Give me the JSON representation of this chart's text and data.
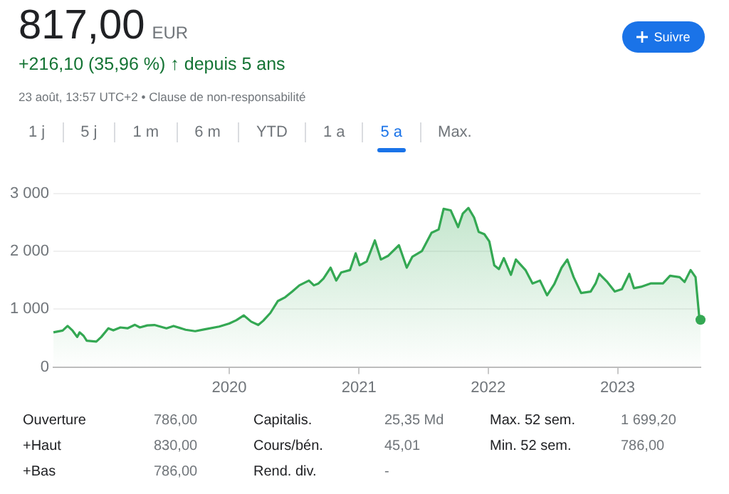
{
  "chart_data": {
    "type": "area",
    "title": "817,00",
    "subtitle": "+216,10 (35,96 %) ↑ depuis 5 ans",
    "annotations": [
      "EUR",
      "23 août, 13:57 UTC+2 • Clause de non-responsabilité",
      "Suivre",
      "1 j",
      "5 j",
      "1 m",
      "6 m",
      "YTD",
      "1 a",
      "5 a",
      "Max.",
      "Ouverture",
      "786,00",
      "Capitalis.",
      "25,35 Md",
      "Max. 52 sem.",
      "1 699,20",
      "+Haut",
      "830,00",
      "Cours/bén.",
      "45,01",
      "Min. 52 sem.",
      "786,00",
      "+Bas",
      "786,00",
      "Rend. div.",
      "-"
    ],
    "x": [
      "2018-08-23",
      "2018-09-18",
      "2018-10-02",
      "2018-10-16",
      "2018-10-29",
      "2018-11-05",
      "2018-11-16",
      "2018-11-25",
      "2018-12-22",
      "2019-01-05",
      "2019-01-25",
      "2019-02-08",
      "2019-02-28",
      "2019-03-20",
      "2019-04-10",
      "2019-04-24",
      "2019-05-15",
      "2019-06-04",
      "2019-07-08",
      "2019-07-28",
      "2019-08-31",
      "2019-09-27",
      "2019-10-24",
      "2019-12-04",
      "2020-01-01",
      "2020-01-21",
      "2020-02-11",
      "2020-03-03",
      "2020-03-23",
      "2020-04-06",
      "2020-04-26",
      "2020-05-17",
      "2020-06-07",
      "2020-06-27",
      "2020-07-17",
      "2020-08-13",
      "2020-08-27",
      "2020-09-09",
      "2020-09-23",
      "2020-10-13",
      "2020-10-29",
      "2020-11-12",
      "2020-12-07",
      "2020-12-23",
      "2021-01-03",
      "2021-01-23",
      "2021-02-15",
      "2021-03-04",
      "2021-03-25",
      "2021-04-24",
      "2021-05-16",
      "2021-06-01",
      "2021-06-28",
      "2021-07-25",
      "2021-08-14",
      "2021-08-28",
      "2021-09-17",
      "2021-10-08",
      "2021-10-21",
      "2021-11-06",
      "2021-11-22",
      "2021-12-05",
      "2021-12-21",
      "2022-01-04",
      "2022-01-18",
      "2022-01-31",
      "2022-02-14",
      "2022-03-06",
      "2022-03-20",
      "2022-04-16",
      "2022-05-06",
      "2022-05-27",
      "2022-06-16",
      "2022-07-06",
      "2022-07-27",
      "2022-08-12",
      "2022-08-30",
      "2022-09-20",
      "2022-10-17",
      "2022-10-31",
      "2022-11-10",
      "2022-12-03",
      "2022-12-24",
      "2023-01-13",
      "2023-02-03",
      "2023-02-16",
      "2023-03-08",
      "2023-04-04",
      "2023-05-09",
      "2023-05-29",
      "2023-06-25",
      "2023-07-09",
      "2023-07-26",
      "2023-08-09",
      "2023-08-20",
      "2023-08-23"
    ],
    "series": [
      {
        "color": "#34a853",
        "values": [
          600,
          630,
          710,
          630,
          520,
          600,
          540,
          455,
          440,
          520,
          670,
          635,
          685,
          670,
          730,
          685,
          720,
          727,
          670,
          710,
          645,
          620,
          653,
          700,
          752,
          810,
          893,
          785,
          727,
          800,
          934,
          1140,
          1207,
          1306,
          1413,
          1496,
          1413,
          1446,
          1529,
          1719,
          1496,
          1636,
          1678,
          1967,
          1760,
          1826,
          2190,
          1860,
          1926,
          2107,
          1719,
          1909,
          2008,
          2322,
          2380,
          2736,
          2711,
          2421,
          2653,
          2752,
          2587,
          2339,
          2298,
          2174,
          1760,
          1694,
          1884,
          1595,
          1860,
          1678,
          1446,
          1496,
          1240,
          1430,
          1719,
          1860,
          1554,
          1281,
          1306,
          1446,
          1612,
          1471,
          1306,
          1347,
          1612,
          1364,
          1388,
          1446,
          1446,
          1579,
          1554,
          1471,
          1678,
          1554,
          826,
          817
        ]
      }
    ],
    "xlim": [
      "2018-08-23",
      "2023-08-23"
    ],
    "xticks": [
      {
        "value": "2020-01-01",
        "label": "2020"
      },
      {
        "value": "2021-01-01",
        "label": "2021"
      },
      {
        "value": "2022-01-01",
        "label": "2022"
      },
      {
        "value": "2023-01-01",
        "label": "2023"
      }
    ],
    "ylim": [
      0,
      3000
    ],
    "yticks": [
      0,
      {
        "value": 1000,
        "label": "1 000"
      },
      {
        "value": 2000,
        "label": "2 000"
      },
      {
        "value": 3000,
        "label": "3 000"
      }
    ],
    "grid": "y",
    "legend": false,
    "marker": "none",
    "line_style": "solid"
  }
}
